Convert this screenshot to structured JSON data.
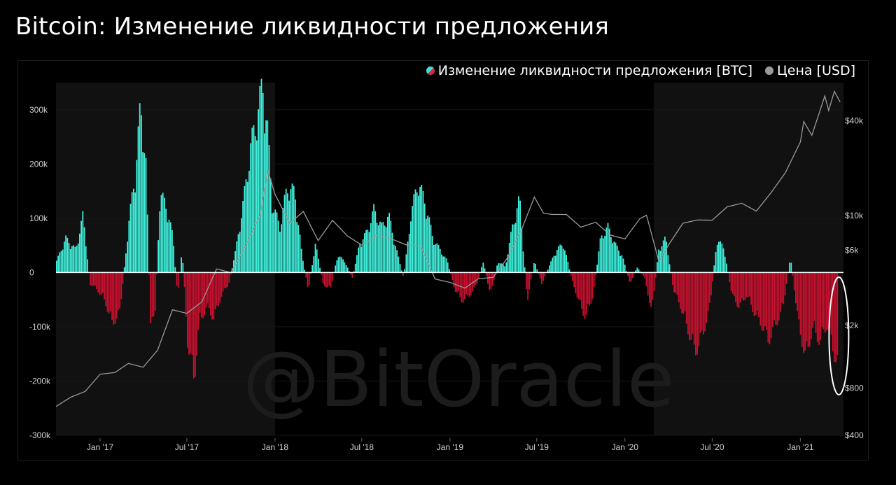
{
  "title": "Bitcoin: Изменение ликвидности предложения",
  "legend": {
    "series1": "Изменение ликвидности предложения [BTC]",
    "series2": "Цена [USD]"
  },
  "watermark": "@BitOracle",
  "colors": {
    "positive": "#3ff0dc",
    "negative": "#c8102e",
    "price": "#9a9a9a",
    "shade": "#111111",
    "highlight": "#ffffff"
  },
  "chart_data": {
    "type": "bar",
    "x_axis": {
      "start": "2016-10",
      "end": "2021-04",
      "tick_labels": [
        "Jan '17",
        "Jul '17",
        "Jan '18",
        "Jul '18",
        "Jan '19",
        "Jul '19",
        "Jan '20",
        "Jul '20",
        "Jan '21"
      ]
    },
    "left_axis": {
      "label": "",
      "ylim": [
        -300000,
        350000
      ],
      "tick_values": [
        300000,
        200000,
        100000,
        0,
        -100000,
        -200000,
        -300000
      ],
      "tick_labels": [
        "300k",
        "200k",
        "100k",
        "0",
        "-100k",
        "-200k",
        "-300k"
      ]
    },
    "right_axis": {
      "label": "",
      "scale": "log",
      "tick_values": [
        40000,
        10000,
        6000,
        2000,
        800,
        400
      ],
      "tick_labels": [
        "$40k",
        "$10k",
        "$6k",
        "$2k",
        "$800",
        "$400"
      ]
    },
    "shaded_periods": [
      [
        "2016-10",
        "2018-01"
      ],
      [
        "2020-03",
        "2021-04"
      ]
    ],
    "highlight": {
      "from": "2021-03",
      "to": "2021-04",
      "shape": "ellipse"
    },
    "series": [
      {
        "name": "Изменение ликвидности предложения [BTC]",
        "kind": "bar",
        "points": [
          [
            "2016-10-01",
            20000
          ],
          [
            "2016-10-20",
            60000
          ],
          [
            "2016-11-10",
            40000
          ],
          [
            "2016-11-25",
            100000
          ],
          [
            "2016-12-10",
            -20000
          ],
          [
            "2016-12-25",
            -30000
          ],
          [
            "2017-01-10",
            -50000
          ],
          [
            "2017-01-25",
            -90000
          ],
          [
            "2017-02-10",
            -70000
          ],
          [
            "2017-03-01",
            90000
          ],
          [
            "2017-03-15",
            180000
          ],
          [
            "2017-03-25",
            290000
          ],
          [
            "2017-04-05",
            200000
          ],
          [
            "2017-04-15",
            -100000
          ],
          [
            "2017-04-25",
            -60000
          ],
          [
            "2017-05-05",
            140000
          ],
          [
            "2017-05-20",
            110000
          ],
          [
            "2017-06-01",
            60000
          ],
          [
            "2017-06-10",
            -40000
          ],
          [
            "2017-06-20",
            40000
          ],
          [
            "2017-07-01",
            -120000
          ],
          [
            "2017-07-15",
            -190000
          ],
          [
            "2017-07-25",
            -90000
          ],
          [
            "2017-08-10",
            -60000
          ],
          [
            "2017-08-25",
            -80000
          ],
          [
            "2017-09-10",
            -40000
          ],
          [
            "2017-09-25",
            -20000
          ],
          [
            "2017-10-10",
            40000
          ],
          [
            "2017-10-25",
            120000
          ],
          [
            "2017-11-10",
            220000
          ],
          [
            "2017-11-25",
            280000
          ],
          [
            "2017-12-05",
            330000
          ],
          [
            "2017-12-15",
            250000
          ],
          [
            "2017-12-25",
            120000
          ],
          [
            "2018-01-10",
            80000
          ],
          [
            "2018-01-25",
            150000
          ],
          [
            "2018-02-10",
            140000
          ],
          [
            "2018-02-25",
            30000
          ],
          [
            "2018-03-10",
            -30000
          ],
          [
            "2018-03-25",
            50000
          ],
          [
            "2018-04-10",
            -20000
          ],
          [
            "2018-04-25",
            -30000
          ],
          [
            "2018-05-10",
            30000
          ],
          [
            "2018-05-25",
            20000
          ],
          [
            "2018-06-10",
            -10000
          ],
          [
            "2018-06-25",
            50000
          ],
          [
            "2018-07-10",
            70000
          ],
          [
            "2018-07-25",
            110000
          ],
          [
            "2018-08-10",
            80000
          ],
          [
            "2018-08-25",
            100000
          ],
          [
            "2018-09-10",
            40000
          ],
          [
            "2018-09-25",
            -10000
          ],
          [
            "2018-10-10",
            100000
          ],
          [
            "2018-10-25",
            160000
          ],
          [
            "2018-11-10",
            120000
          ],
          [
            "2018-11-25",
            60000
          ],
          [
            "2018-12-10",
            40000
          ],
          [
            "2018-12-25",
            20000
          ],
          [
            "2019-01-10",
            -30000
          ],
          [
            "2019-01-25",
            -50000
          ],
          [
            "2019-02-10",
            -40000
          ],
          [
            "2019-02-25",
            -20000
          ],
          [
            "2019-03-10",
            20000
          ],
          [
            "2019-03-25",
            -40000
          ],
          [
            "2019-04-10",
            20000
          ],
          [
            "2019-04-25",
            10000
          ],
          [
            "2019-05-10",
            80000
          ],
          [
            "2019-05-25",
            130000
          ],
          [
            "2019-06-10",
            -50000
          ],
          [
            "2019-06-25",
            20000
          ],
          [
            "2019-07-10",
            -20000
          ],
          [
            "2019-07-25",
            10000
          ],
          [
            "2019-08-10",
            40000
          ],
          [
            "2019-08-25",
            50000
          ],
          [
            "2019-09-10",
            -10000
          ],
          [
            "2019-09-25",
            -50000
          ],
          [
            "2019-10-10",
            -80000
          ],
          [
            "2019-10-25",
            -40000
          ],
          [
            "2019-11-10",
            60000
          ],
          [
            "2019-11-25",
            80000
          ],
          [
            "2019-12-10",
            50000
          ],
          [
            "2019-12-25",
            30000
          ],
          [
            "2020-01-10",
            -20000
          ],
          [
            "2020-01-25",
            10000
          ],
          [
            "2020-02-10",
            -10000
          ],
          [
            "2020-02-25",
            -70000
          ],
          [
            "2020-03-10",
            40000
          ],
          [
            "2020-03-25",
            60000
          ],
          [
            "2020-04-10",
            -30000
          ],
          [
            "2020-04-25",
            -60000
          ],
          [
            "2020-05-10",
            -100000
          ],
          [
            "2020-05-25",
            -140000
          ],
          [
            "2020-06-10",
            -110000
          ],
          [
            "2020-06-25",
            -60000
          ],
          [
            "2020-07-10",
            60000
          ],
          [
            "2020-07-25",
            40000
          ],
          [
            "2020-08-10",
            -40000
          ],
          [
            "2020-08-25",
            -60000
          ],
          [
            "2020-09-10",
            -40000
          ],
          [
            "2020-09-25",
            -70000
          ],
          [
            "2020-10-10",
            -90000
          ],
          [
            "2020-10-25",
            -120000
          ],
          [
            "2020-11-10",
            -90000
          ],
          [
            "2020-11-25",
            -60000
          ],
          [
            "2020-12-10",
            30000
          ],
          [
            "2020-12-25",
            -80000
          ],
          [
            "2021-01-10",
            -150000
          ],
          [
            "2021-01-25",
            -100000
          ],
          [
            "2021-02-10",
            -120000
          ],
          [
            "2021-02-25",
            -90000
          ],
          [
            "2021-03-10",
            -140000
          ],
          [
            "2021-03-20",
            -160000
          ]
        ]
      },
      {
        "name": "Цена [USD]",
        "kind": "line",
        "points": [
          [
            "2016-10-01",
            610
          ],
          [
            "2016-11-01",
            700
          ],
          [
            "2016-12-01",
            760
          ],
          [
            "2017-01-01",
            980
          ],
          [
            "2017-02-01",
            1000
          ],
          [
            "2017-03-01",
            1150
          ],
          [
            "2017-04-01",
            1080
          ],
          [
            "2017-05-01",
            1400
          ],
          [
            "2017-06-01",
            2500
          ],
          [
            "2017-07-01",
            2400
          ],
          [
            "2017-08-01",
            2800
          ],
          [
            "2017-09-01",
            4600
          ],
          [
            "2017-10-01",
            4300
          ],
          [
            "2017-11-01",
            6500
          ],
          [
            "2017-12-01",
            10000
          ],
          [
            "2017-12-17",
            19500
          ],
          [
            "2018-01-01",
            13500
          ],
          [
            "2018-02-01",
            9000
          ],
          [
            "2018-03-01",
            10500
          ],
          [
            "2018-04-01",
            7000
          ],
          [
            "2018-05-01",
            9200
          ],
          [
            "2018-06-01",
            7500
          ],
          [
            "2018-07-01",
            6400
          ],
          [
            "2018-08-01",
            7600
          ],
          [
            "2018-09-01",
            7000
          ],
          [
            "2018-10-01",
            6600
          ],
          [
            "2018-11-01",
            6300
          ],
          [
            "2018-12-01",
            4000
          ],
          [
            "2019-01-01",
            3700
          ],
          [
            "2019-02-01",
            3500
          ],
          [
            "2019-03-01",
            3900
          ],
          [
            "2019-04-01",
            4100
          ],
          [
            "2019-05-01",
            5300
          ],
          [
            "2019-06-01",
            8500
          ],
          [
            "2019-06-26",
            12900
          ],
          [
            "2019-07-15",
            10500
          ],
          [
            "2019-08-01",
            10000
          ],
          [
            "2019-09-01",
            10300
          ],
          [
            "2019-10-01",
            8300
          ],
          [
            "2019-11-01",
            9200
          ],
          [
            "2019-12-01",
            7400
          ],
          [
            "2020-01-01",
            7200
          ],
          [
            "2020-02-01",
            9400
          ],
          [
            "2020-02-15",
            10200
          ],
          [
            "2020-03-12",
            5000
          ],
          [
            "2020-04-01",
            6600
          ],
          [
            "2020-05-01",
            8800
          ],
          [
            "2020-06-01",
            9500
          ],
          [
            "2020-07-01",
            9200
          ],
          [
            "2020-08-01",
            11500
          ],
          [
            "2020-09-01",
            11800
          ],
          [
            "2020-10-01",
            10800
          ],
          [
            "2020-11-01",
            13800
          ],
          [
            "2020-12-01",
            19000
          ],
          [
            "2021-01-01",
            29000
          ],
          [
            "2021-01-08",
            40000
          ],
          [
            "2021-01-25",
            32000
          ],
          [
            "2021-02-10",
            46000
          ],
          [
            "2021-02-21",
            57000
          ],
          [
            "2021-03-01",
            47000
          ],
          [
            "2021-03-13",
            61000
          ],
          [
            "2021-03-25",
            53000
          ]
        ]
      }
    ]
  }
}
